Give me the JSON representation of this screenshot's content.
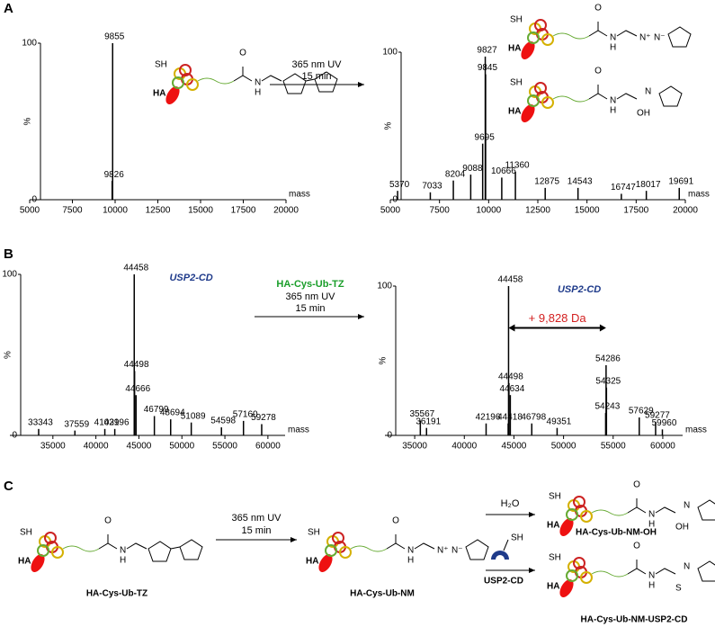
{
  "panel_labels": [
    "A",
    "B",
    "C"
  ],
  "reactions": {
    "a": {
      "line1": "365 nm UV",
      "line2": "15 min"
    },
    "b": {
      "reagent": "HA-Cys-Ub-TZ",
      "line1": "365 nm UV",
      "line2": "15 min"
    },
    "c": {
      "line1": "365 nm UV",
      "line2": "15 min"
    }
  },
  "compounds": [
    "HA-Cys-Ub-TZ",
    "HA-Cys-Ub-NM",
    "HA-Cys-Ub-NM-OH",
    "HA-Cys-Ub-NM-USP2-CD"
  ],
  "reagents": {
    "water": "H₂O",
    "thiol": "SH",
    "enzyme": "USP2-CD"
  },
  "atoms": {
    "ha": "HA",
    "sh": "SH",
    "o": "O",
    "n": "N",
    "h": "H",
    "s": "S",
    "oh": "OH",
    "nplus": "N⁺",
    "nminus": "N⁻"
  },
  "chart_data": [
    {
      "type": "spectrum",
      "xlabel": "mass",
      "ylabel": "%",
      "color": "#000000",
      "x": [
        9855,
        9826
      ],
      "values": [
        100,
        12
      ],
      "xlim": [
        5000,
        20000
      ],
      "xticks": [
        5000,
        7500,
        10000,
        12500,
        15000,
        17500,
        20000
      ],
      "ylim": [
        0,
        100
      ],
      "yticks": [
        0,
        100
      ]
    },
    {
      "type": "spectrum",
      "xlabel": "mass",
      "ylabel": "%",
      "color": "#000000",
      "x": [
        5370,
        7033,
        8204,
        9088,
        9695,
        9827,
        9845,
        10666,
        11360,
        12875,
        14543,
        16747,
        18017,
        19691
      ],
      "values": [
        6,
        5,
        13,
        17,
        38,
        97,
        85,
        15,
        19,
        8,
        8,
        4,
        6,
        8
      ],
      "xlim": [
        5000,
        20000
      ],
      "xticks": [
        5000,
        7500,
        10000,
        12500,
        15000,
        17500,
        20000
      ],
      "ylim": [
        0,
        100
      ],
      "yticks": [
        0,
        100
      ]
    },
    {
      "type": "spectrum",
      "xlabel": "mass",
      "ylabel": "%",
      "color": "#000000",
      "label": "USP2-CD",
      "x": [
        33343,
        37559,
        41039,
        42196,
        44458,
        44498,
        44666,
        46799,
        48694,
        51089,
        54598,
        57160,
        59278
      ],
      "values": [
        4,
        3,
        4,
        4,
        100,
        40,
        25,
        12,
        10,
        8,
        5,
        9,
        7
      ],
      "xlim": [
        30000,
        62000
      ],
      "xticks": [
        35000,
        40000,
        45000,
        50000,
        55000,
        60000
      ],
      "ylim": [
        0,
        100
      ],
      "yticks": [
        0,
        100
      ]
    },
    {
      "type": "spectrum",
      "xlabel": "mass",
      "ylabel": "%",
      "color": "#000000",
      "label": "USP2-CD",
      "shift_label": "+ 9,828 Da",
      "x": [
        35567,
        36191,
        42196,
        44418,
        44458,
        44498,
        44634,
        46798,
        49351,
        54243,
        54286,
        54325,
        57629,
        59277,
        59960
      ],
      "values": [
        10,
        5,
        8,
        8,
        100,
        35,
        27,
        8,
        5,
        15,
        47,
        32,
        12,
        9,
        4
      ],
      "xlim": [
        32000,
        62000
      ],
      "xticks": [
        35000,
        40000,
        45000,
        50000,
        55000,
        60000
      ],
      "ylim": [
        0,
        100
      ],
      "yticks": [
        0,
        100
      ]
    }
  ]
}
